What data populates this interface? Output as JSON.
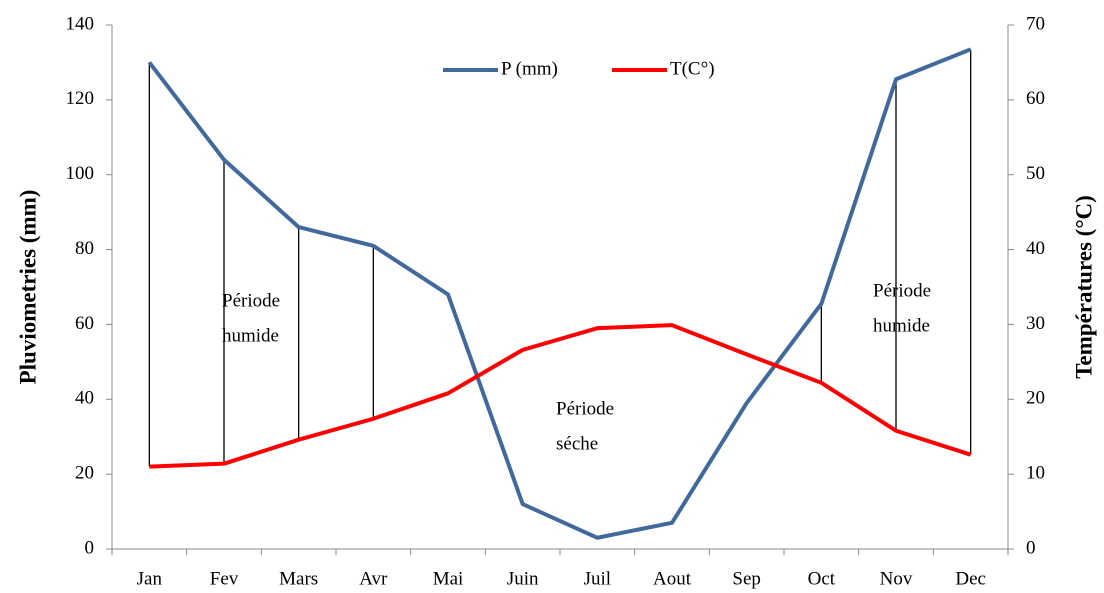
{
  "chart_data": {
    "type": "line",
    "y_label": "Pluviometries (mm)",
    "y2_label": "Températures (°C)",
    "categories": [
      "Jan",
      "Fev",
      "Mars",
      "Avr",
      "Mai",
      "Juin",
      "Juil",
      "Aout",
      "Sep",
      "Oct",
      "Nov",
      "Dec"
    ],
    "series": [
      {
        "name": "P (mm)",
        "color": "#41699c",
        "values": [
          130,
          104,
          86,
          81,
          68,
          12,
          3,
          7,
          39,
          65.5,
          125.5,
          133.5
        ]
      },
      {
        "name": "T(C°)",
        "color": "#ff0000",
        "axis": "y2",
        "values": [
          11,
          11.4,
          14.6,
          17.4,
          20.8,
          26.6,
          29.5,
          29.9,
          26,
          22.2,
          15.8,
          12.6
        ]
      }
    ],
    "ylim": [
      0,
      140
    ],
    "yticks": [
      0,
      20,
      40,
      60,
      80,
      100,
      120,
      140
    ],
    "y2lim": [
      0,
      70
    ],
    "y2ticks": [
      0,
      10,
      20,
      30,
      40,
      50,
      60,
      70
    ],
    "legend": "top",
    "annotations": [
      {
        "lines": [
          "Période",
          "humide"
        ]
      },
      {
        "lines": [
          "Période",
          "séche"
        ]
      },
      {
        "lines": [
          "Période",
          "humide"
        ]
      }
    ]
  }
}
